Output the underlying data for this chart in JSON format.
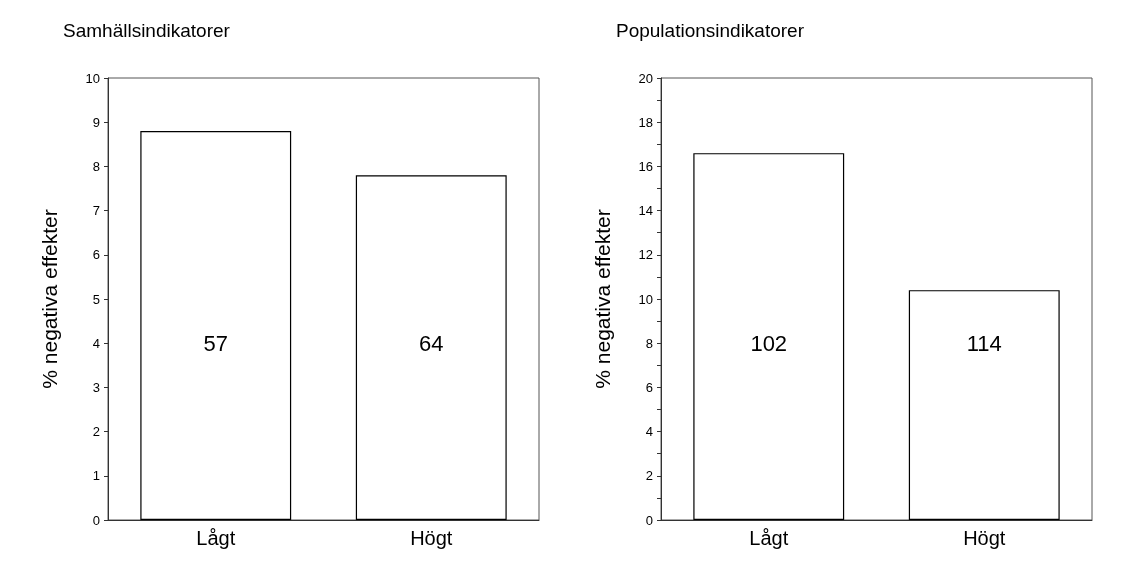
{
  "chart_data": [
    {
      "type": "bar",
      "title": "Samhällsindikatorer",
      "ylabel": "% negativa effekter",
      "categories": [
        "Lågt",
        "Högt"
      ],
      "values": [
        8.8,
        7.8
      ],
      "color": "#ffffff",
      "ylim": [
        0,
        10
      ],
      "yticks": [
        0,
        1,
        2,
        3,
        4,
        5,
        6,
        7,
        8,
        9,
        10
      ],
      "grid": false,
      "annotations": [
        "57",
        "64"
      ]
    },
    {
      "type": "bar",
      "title": "Populationsindikatorer",
      "ylabel": "% negativa effekter",
      "categories": [
        "Lågt",
        "Högt"
      ],
      "values": [
        16.6,
        10.4
      ],
      "color": "#ffffff",
      "ylim": [
        0,
        20
      ],
      "yticks": [
        0,
        {
          "value": 1,
          "label": null
        },
        2,
        {
          "value": 3,
          "label": null
        },
        4,
        {
          "value": 5,
          "label": null
        },
        6,
        {
          "value": 7,
          "label": null
        },
        8,
        {
          "value": 9,
          "label": null
        },
        10,
        {
          "value": 11,
          "label": null
        },
        12,
        {
          "value": 13,
          "label": null
        },
        14,
        {
          "value": 15,
          "label": null
        },
        16,
        {
          "value": 17,
          "label": null
        },
        18,
        {
          "value": 19,
          "label": null
        },
        20
      ],
      "grid": false,
      "annotations": [
        "102",
        "114"
      ]
    }
  ]
}
